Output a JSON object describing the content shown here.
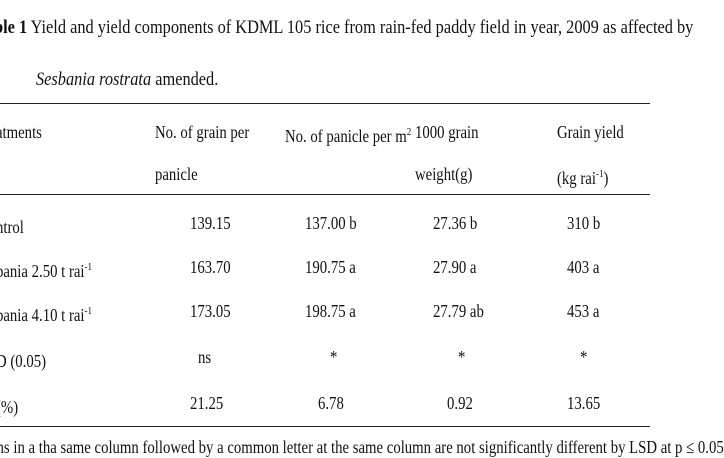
{
  "caption": {
    "label": "ble 1",
    "text": " Yield and yield components of KDML 105 rice from rain-fed paddy field in year, 2009 as affected by",
    "species": "Sesbania rostrata",
    "suffix": " amended."
  },
  "header": {
    "col1": "atments",
    "col2_line1": "No. of grain per",
    "col2_line2": "panicle",
    "col3_text": "No. of panicle per m",
    "col3_sup": "2",
    "col4_line1": "1000 grain",
    "col4_line2": "weight(g)",
    "col5_line1": "Grain yield",
    "col5_line2a": "(kg rai",
    "col5_sup": "-1",
    "col5_line2b": ")"
  },
  "rows": [
    {
      "treatment": "ntrol",
      "treatment_sup": "",
      "grain_per_panicle": "139.15",
      "panicle_per_m2": "137.00 b",
      "grain_weight": "27.36 b",
      "grain_yield": "310 b"
    },
    {
      "treatment": "bania 2.50 t rai",
      "treatment_sup": "-1",
      "grain_per_panicle": "163.70",
      "panicle_per_m2": "190.75 a",
      "grain_weight": "27.90 a",
      "grain_yield": "403 a"
    },
    {
      "treatment": "bania 4.10 t rai",
      "treatment_sup": "-1",
      "grain_per_panicle": "173.05",
      "panicle_per_m2": "198.75 a",
      "grain_weight": "27.79 ab",
      "grain_yield": "453 a"
    },
    {
      "treatment": "D (0.05)",
      "treatment_sup": "",
      "grain_per_panicle": "ns",
      "panicle_per_m2": "*",
      "grain_weight": "*",
      "grain_yield": "*"
    },
    {
      "treatment": "(%)",
      "treatment_sup": "",
      "grain_per_panicle": "21.25",
      "panicle_per_m2": "6.78",
      "grain_weight": "0.92",
      "grain_yield": "13.65"
    }
  ],
  "footnote": "ans in a tha same column followed by a common letter at the same column are not significantly different by LSD at p ≤ 0.05"
}
